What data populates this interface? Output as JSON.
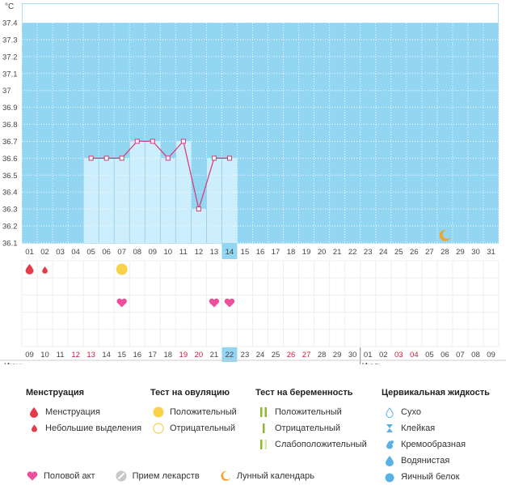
{
  "chart_data": {
    "type": "line",
    "ylabel": "°C",
    "y_ticks": [
      "37.4",
      "37.3",
      "37.2",
      "37.1",
      "37",
      "36.9",
      "36.8",
      "36.7",
      "36.6",
      "36.5",
      "36.4",
      "36.3",
      "36.2",
      "36.1"
    ],
    "ylim": [
      36.1,
      37.4
    ],
    "days": [
      "01",
      "02",
      "03",
      "04",
      "05",
      "06",
      "07",
      "08",
      "09",
      "10",
      "11",
      "12",
      "13",
      "14",
      "15",
      "16",
      "17",
      "18",
      "19",
      "20",
      "21",
      "22",
      "23",
      "24",
      "25",
      "26",
      "27",
      "28",
      "29",
      "30",
      "31"
    ],
    "temperatures": [
      {
        "day": "05",
        "value": 36.6
      },
      {
        "day": "06",
        "value": 36.6
      },
      {
        "day": "07",
        "value": 36.6
      },
      {
        "day": "08",
        "value": 36.7
      },
      {
        "day": "09",
        "value": 36.7
      },
      {
        "day": "10",
        "value": 36.6
      },
      {
        "day": "11",
        "value": 36.7
      },
      {
        "day": "12",
        "value": 36.3
      },
      {
        "day": "13",
        "value": 36.6
      },
      {
        "day": "14",
        "value": 36.6
      }
    ],
    "highlight_day": "14",
    "moon_day": "28",
    "marks": {
      "menstruation": [
        "01"
      ],
      "light_spotting": [
        "02"
      ],
      "ovulation_positive": [
        "07"
      ],
      "intercourse": [
        "07",
        "13",
        "14"
      ]
    },
    "dates": [
      {
        "label": "09",
        "weekend": false
      },
      {
        "label": "10",
        "weekend": false
      },
      {
        "label": "11",
        "weekend": false
      },
      {
        "label": "12",
        "weekend": true
      },
      {
        "label": "13",
        "weekend": true
      },
      {
        "label": "14",
        "weekend": false
      },
      {
        "label": "15",
        "weekend": false
      },
      {
        "label": "16",
        "weekend": false
      },
      {
        "label": "17",
        "weekend": false
      },
      {
        "label": "18",
        "weekend": false
      },
      {
        "label": "19",
        "weekend": true
      },
      {
        "label": "20",
        "weekend": true
      },
      {
        "label": "21",
        "weekend": false
      },
      {
        "label": "22",
        "weekend": false
      },
      {
        "label": "23",
        "weekend": false
      },
      {
        "label": "24",
        "weekend": false
      },
      {
        "label": "25",
        "weekend": false
      },
      {
        "label": "26",
        "weekend": true
      },
      {
        "label": "27",
        "weekend": true
      },
      {
        "label": "28",
        "weekend": false
      },
      {
        "label": "29",
        "weekend": false
      },
      {
        "label": "30",
        "weekend": false
      },
      {
        "label": "01",
        "weekend": false
      },
      {
        "label": "02",
        "weekend": false
      },
      {
        "label": "03",
        "weekend": true
      },
      {
        "label": "04",
        "weekend": true
      },
      {
        "label": "05",
        "weekend": false
      },
      {
        "label": "06",
        "weekend": false
      },
      {
        "label": "07",
        "weekend": false
      },
      {
        "label": "08",
        "weekend": false
      },
      {
        "label": "09",
        "weekend": false
      }
    ],
    "today_date": "22",
    "months": [
      {
        "label": "Июнь",
        "start_index": 0
      },
      {
        "label": "Июль",
        "start_index": 22
      }
    ]
  },
  "colors": {
    "plot_bg": "#92d6f1",
    "bar_fill": "#cdeefc",
    "bar_stroke": "#8ccbe8",
    "line": "#d9357a",
    "grid": "#ffffff",
    "highlight": "#92d6f1",
    "weekend": "#cc1a3a",
    "drop": "#e23b4a",
    "heart": "#ee4f9c",
    "ovulation": "#f7d24a",
    "test_green": "#8fb832",
    "cervical_blue": "#5ab1e4",
    "moon": "#f0a432"
  },
  "legend": {
    "menstruation": {
      "title": "Менструация",
      "items": [
        "Менструация",
        "Небольшие выделения"
      ]
    },
    "ovulation": {
      "title": "Тест на овуляцию",
      "items": [
        "Положительный",
        "Отрицательный"
      ]
    },
    "pregnancy": {
      "title": "Тест на беременность",
      "items": [
        "Положительный",
        "Отрицательный",
        "Слабоположительный"
      ]
    },
    "cervical": {
      "title": "Цервикальная жидкость",
      "items": [
        "Сухо",
        "Клейкая",
        "Кремообразная",
        "Водянистая",
        "Яичный белок"
      ]
    },
    "bottom": [
      "Половой акт",
      "Прием лекарств",
      "Лунный календарь"
    ]
  }
}
